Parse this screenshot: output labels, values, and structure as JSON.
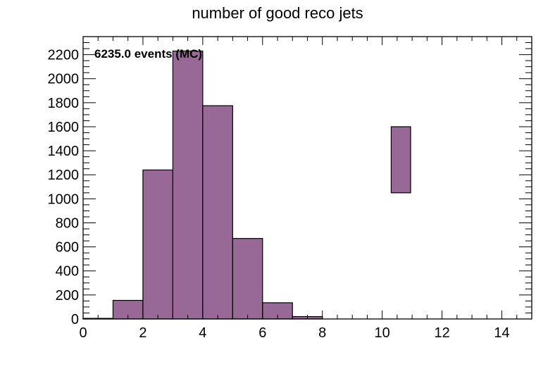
{
  "chart_data": {
    "type": "bar",
    "title": "number of good reco jets",
    "xlabel": "",
    "ylabel": "",
    "annotation": "6235.0 events (MC)",
    "xlim": [
      0,
      15
    ],
    "ylim": [
      0,
      2350
    ],
    "x_ticks": [
      0,
      2,
      4,
      6,
      8,
      10,
      12,
      14
    ],
    "y_ticks": [
      0,
      200,
      400,
      600,
      800,
      1000,
      1200,
      1400,
      1600,
      1800,
      2000,
      2200
    ],
    "bins": [
      {
        "low": 0,
        "high": 1,
        "value": 5
      },
      {
        "low": 1,
        "high": 2,
        "value": 155
      },
      {
        "low": 2,
        "high": 3,
        "value": 1240
      },
      {
        "low": 3,
        "high": 4,
        "value": 2230
      },
      {
        "low": 4,
        "high": 5,
        "value": 1775
      },
      {
        "low": 5,
        "high": 6,
        "value": 670
      },
      {
        "low": 6,
        "high": 7,
        "value": 135
      },
      {
        "low": 7,
        "high": 8,
        "value": 20
      },
      {
        "low": 8,
        "high": 9,
        "value": 0
      },
      {
        "low": 9,
        "high": 10,
        "value": 0
      },
      {
        "low": 10,
        "high": 11,
        "value": 0
      },
      {
        "low": 11,
        "high": 12,
        "value": 0
      },
      {
        "low": 12,
        "high": 13,
        "value": 0
      },
      {
        "low": 13,
        "high": 14,
        "value": 0
      },
      {
        "low": 14,
        "high": 15,
        "value": 0
      }
    ],
    "legend_box": {
      "x_low": 10.3,
      "x_high": 10.95,
      "y_low": 1050,
      "y_high": 1600
    },
    "fill_color": "#986896",
    "grid": false,
    "legend": "top-right"
  }
}
